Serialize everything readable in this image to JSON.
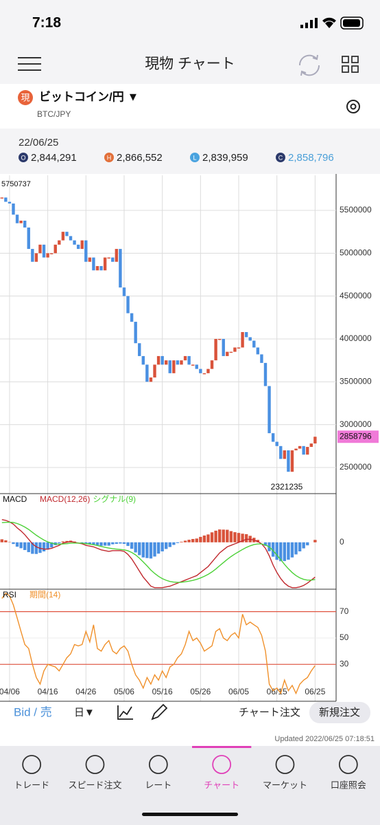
{
  "status_bar": {
    "time": "7:18"
  },
  "header": {
    "title": "現物 チャート"
  },
  "instrument": {
    "badge": "現",
    "name": "ビットコイン/円 ▼",
    "code": "BTC/JPY"
  },
  "quote": {
    "date": "22/06/25",
    "items": [
      {
        "icon": "O",
        "value": "2,844,291"
      },
      {
        "icon": "H",
        "value": "2,866,552"
      },
      {
        "icon": "L",
        "value": "2,839,959"
      },
      {
        "icon": "C",
        "value": "2,858,796"
      }
    ]
  },
  "chart_data": [
    {
      "type": "candlestick",
      "up_color": "#d9533b",
      "down_color": "#4a90e2",
      "xlim": [
        -0.5,
        87.5
      ],
      "ylim": [
        2195000,
        5909000
      ],
      "yticks": [
        2500000,
        3000000,
        3500000,
        4000000,
        4500000,
        5000000,
        5500000
      ],
      "grid": true,
      "values": [
        5650000,
        5600000,
        5580000,
        5450000,
        5350000,
        5380000,
        5300000,
        5050000,
        4900000,
        5000000,
        5100000,
        4950000,
        5000000,
        5000000,
        5100000,
        5150000,
        5250000,
        5200000,
        5150000,
        5100000,
        5050000,
        5150000,
        4900000,
        4950000,
        4800000,
        4850000,
        4800000,
        4950000,
        4950000,
        4900000,
        5050000,
        4600000,
        4500000,
        4300000,
        4200000,
        3950000,
        3800000,
        3700000,
        3500000,
        3550000,
        3700000,
        3800000,
        3700000,
        3750000,
        3600000,
        3750000,
        3700000,
        3750000,
        3800000,
        3700000,
        3700000,
        3650000,
        3600000,
        3600000,
        3650000,
        3750000,
        4000000,
        4000000,
        3800000,
        3850000,
        3850000,
        3900000,
        3900000,
        4080000,
        4020000,
        3980000,
        3900000,
        3820000,
        3720000,
        3450000,
        2900000,
        2800000,
        2750000,
        2600000,
        2700000,
        2450000,
        2700000,
        2720000,
        2750000,
        2650000,
        2740000,
        2780000,
        2858796
      ],
      "max_label": 5750737,
      "min_label": 2321235,
      "last_label": 2858796,
      "last_color": "#f07ad8"
    },
    {
      "type": "macd",
      "title": "MACD",
      "xlim": [
        -0.5,
        87.5
      ],
      "ylim": [
        -310000,
        322000
      ],
      "yticks": [
        0
      ],
      "hist_up_color": "#d9533b",
      "hist_down_color": "#4a90e2",
      "series": [
        {
          "name": "MACD(12,26)",
          "color": "#c0282d",
          "values": [
            150000,
            145000,
            135000,
            120000,
            95000,
            75000,
            50000,
            20000,
            -10000,
            -30000,
            -40000,
            -45000,
            -45000,
            -40000,
            -30000,
            -20000,
            -5000,
            0,
            5000,
            0,
            -5000,
            -10000,
            -20000,
            -25000,
            -30000,
            -40000,
            -50000,
            -55000,
            -60000,
            -55000,
            -55000,
            -55000,
            -60000,
            -80000,
            -110000,
            -150000,
            -190000,
            -230000,
            -260000,
            -290000,
            -300000,
            -300000,
            -300000,
            -295000,
            -290000,
            -280000,
            -270000,
            -260000,
            -250000,
            -240000,
            -230000,
            -220000,
            -200000,
            -180000,
            -160000,
            -130000,
            -100000,
            -70000,
            -50000,
            -30000,
            -20000,
            -10000,
            0,
            10000,
            20000,
            20000,
            15000,
            5000,
            -10000,
            -40000,
            -90000,
            -150000,
            -200000,
            -240000,
            -270000,
            -290000,
            -300000,
            -300000,
            -295000,
            -285000,
            -270000,
            -250000,
            -230000
          ]
        },
        {
          "name": "シグナル(9)",
          "color": "#4cd137",
          "values": [
            130000,
            132000,
            133000,
            131000,
            124000,
            114000,
            101000,
            85000,
            66000,
            47000,
            30000,
            15000,
            3000,
            -6000,
            -11000,
            -13000,
            -11000,
            -9000,
            -6000,
            -5000,
            -5000,
            -6000,
            -9000,
            -12000,
            -16000,
            -21000,
            -27000,
            -33000,
            -38000,
            -42000,
            -45000,
            -47000,
            -50000,
            -56000,
            -67000,
            -83000,
            -105000,
            -130000,
            -156000,
            -183000,
            -206000,
            -225000,
            -240000,
            -251000,
            -259000,
            -263000,
            -265000,
            -264000,
            -261000,
            -257000,
            -252000,
            -245000,
            -236000,
            -225000,
            -212000,
            -196000,
            -177000,
            -155000,
            -134000,
            -113000,
            -94000,
            -77000,
            -62000,
            -47000,
            -34000,
            -23000,
            -15000,
            -11000,
            -11000,
            -17000,
            -31000,
            -55000,
            -84000,
            -115000,
            -146000,
            -175000,
            -200000,
            -220000,
            -235000,
            -245000,
            -250000,
            -250000,
            -246000
          ]
        }
      ]
    },
    {
      "type": "line",
      "title": "RSI",
      "xlim": [
        -0.5,
        87.5
      ],
      "ylim": [
        2,
        87
      ],
      "yticks": [
        30,
        50,
        70
      ],
      "reference_lines": [
        70,
        30
      ],
      "reference_color": "#e0533f",
      "xticks": [
        {
          "value": 2,
          "label": "04/06"
        },
        {
          "value": 12,
          "label": "04/16"
        },
        {
          "value": 22,
          "label": "04/26"
        },
        {
          "value": 32,
          "label": "05/06"
        },
        {
          "value": 42,
          "label": "05/16"
        },
        {
          "value": 52,
          "label": "05/26"
        },
        {
          "value": 62,
          "label": "06/05"
        },
        {
          "value": 72,
          "label": "06/15"
        },
        {
          "value": 82,
          "label": "06/25"
        }
      ],
      "series": [
        {
          "name": "期間(14)",
          "color": "#f0902a",
          "values": [
            80,
            84,
            82,
            75,
            65,
            55,
            45,
            42,
            30,
            20,
            15,
            25,
            30,
            29,
            28,
            25,
            30,
            35,
            38,
            45,
            44,
            45,
            55,
            47,
            60,
            42,
            40,
            45,
            48,
            40,
            38,
            42,
            44,
            40,
            30,
            22,
            18,
            12,
            20,
            15,
            22,
            18,
            25,
            20,
            28,
            30,
            35,
            38,
            45,
            55,
            48,
            50,
            46,
            40,
            42,
            44,
            55,
            57,
            50,
            48,
            52,
            54,
            50,
            68,
            60,
            62,
            60,
            58,
            52,
            40,
            15,
            10,
            12,
            8,
            18,
            10,
            14,
            8,
            15,
            18,
            20,
            25,
            29
          ]
        }
      ]
    }
  ],
  "toolbar": {
    "side": "Bid / 売",
    "period": "日▼",
    "chart_order": "チャート注文",
    "new_order": "新規注文"
  },
  "updated": "Updated   2022/06/25 07:18:51",
  "tabs": [
    "トレード",
    "スピード注文",
    "レート",
    "チャート",
    "マーケット",
    "口座照会"
  ],
  "active_tab": 3
}
